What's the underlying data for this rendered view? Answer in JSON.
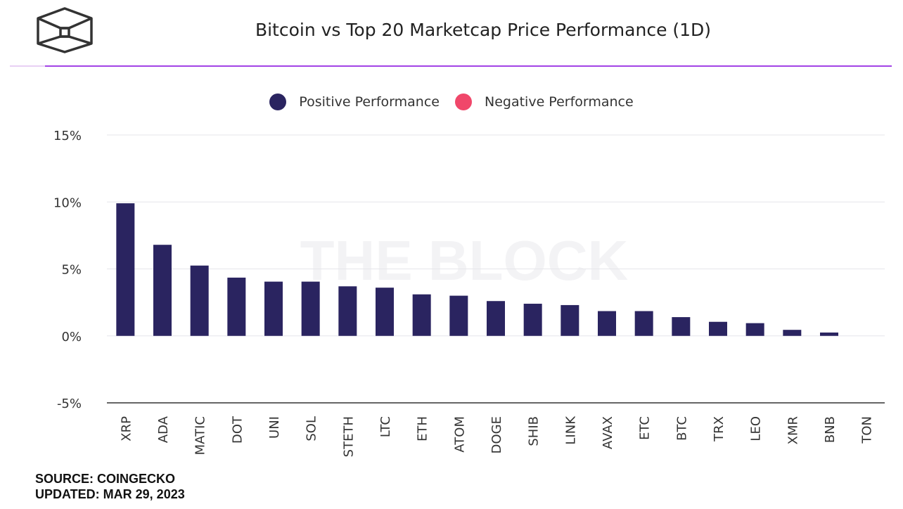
{
  "header": {
    "title": "Bitcoin vs Top 20 Marketcap Price Performance (1D)",
    "logo": "the-block-cube-logo"
  },
  "watermark": "THE BLOCK",
  "colors": {
    "positive": "#2a2460",
    "negative": "#f0476a",
    "accent": "#a243e6"
  },
  "chart_data": {
    "type": "bar",
    "title": "Bitcoin vs Top 20 Marketcap Price Performance (1D)",
    "xlabel": "",
    "ylabel": "",
    "ylim": [
      -5,
      15
    ],
    "yticks": [
      15,
      10,
      5,
      0,
      -5
    ],
    "ytick_labels": [
      "15%",
      "10%",
      "5%",
      "0%",
      "-5%"
    ],
    "grid": true,
    "legend": {
      "placement": "top-center",
      "entries": [
        "Positive Performance",
        "Negative Performance"
      ]
    },
    "categories": [
      "XRP",
      "ADA",
      "MATIC",
      "DOT",
      "UNI",
      "SOL",
      "STETH",
      "LTC",
      "ETH",
      "ATOM",
      "DOGE",
      "SHIB",
      "LINK",
      "AVAX",
      "ETC",
      "BTC",
      "TRX",
      "LEO",
      "XMR",
      "BNB",
      "TON"
    ],
    "values": [
      9.9,
      6.8,
      5.25,
      4.35,
      4.05,
      4.05,
      3.7,
      3.6,
      3.1,
      3.0,
      2.6,
      2.4,
      2.3,
      1.85,
      1.85,
      1.4,
      1.05,
      0.95,
      0.45,
      0.25,
      0
    ]
  },
  "footer": {
    "source": "SOURCE: COINGECKO",
    "updated": "UPDATED: MAR 29, 2023"
  }
}
